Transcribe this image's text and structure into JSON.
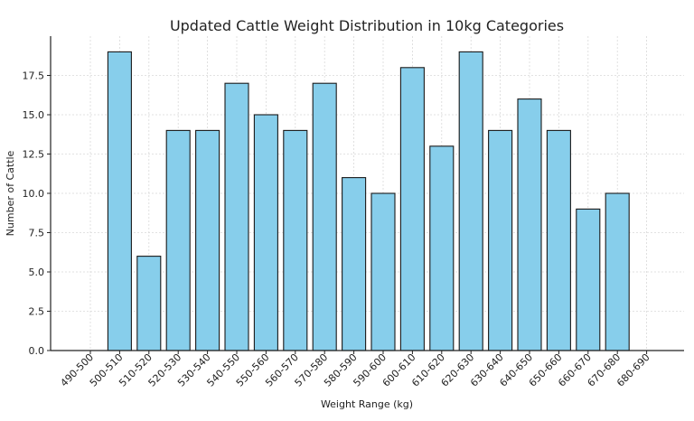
{
  "chart_data": {
    "type": "bar",
    "title": "Updated Cattle Weight Distribution in 10kg Categories",
    "xlabel": "Weight Range (kg)",
    "ylabel": "Number of Cattle",
    "categories": [
      "490-500",
      "500-510",
      "510-520",
      "520-530",
      "530-540",
      "540-550",
      "550-560",
      "560-570",
      "570-580",
      "580-590",
      "590-600",
      "600-610",
      "610-620",
      "620-630",
      "630-640",
      "640-650",
      "650-660",
      "660-670",
      "670-680",
      "680-690"
    ],
    "values": [
      0,
      19,
      6,
      14,
      14,
      17,
      15,
      14,
      17,
      11,
      10,
      18,
      13,
      19,
      14,
      16,
      14,
      9,
      10,
      0
    ],
    "yticks": [
      "0.0",
      "2.5",
      "5.0",
      "7.5",
      "10.0",
      "12.5",
      "15.0",
      "17.5"
    ],
    "ylim": [
      0,
      20
    ],
    "grid": true,
    "colors": {
      "bar_fill": "#87ceeb",
      "bar_edge": "#1a1a1a",
      "grid": "#d9d9d9",
      "axis": "#222222"
    }
  }
}
